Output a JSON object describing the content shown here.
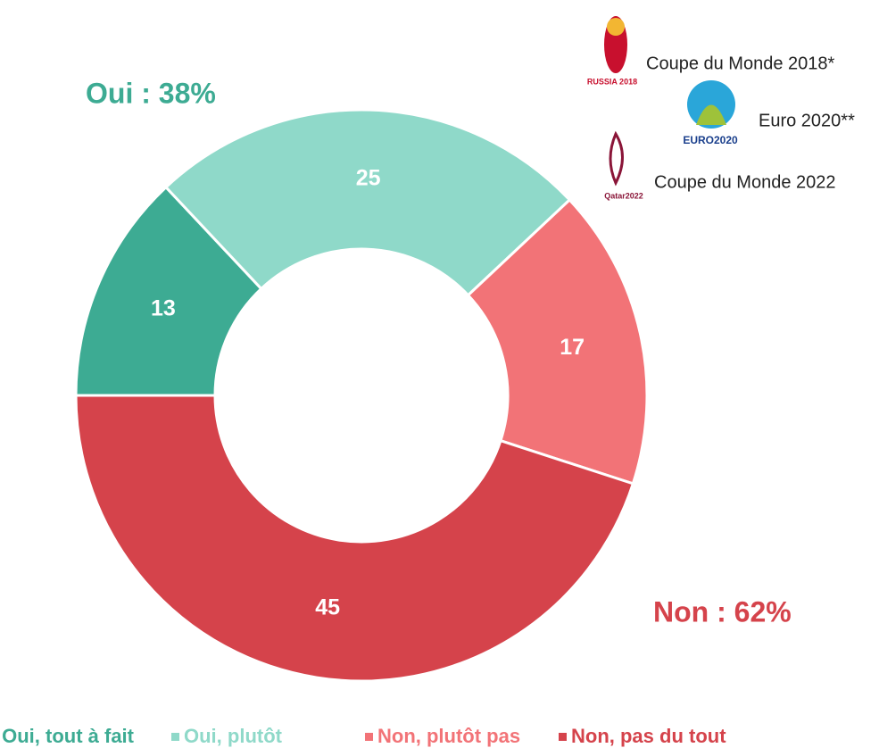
{
  "chart_data": {
    "type": "donut",
    "categories": [
      "Oui, tout à fait",
      "Oui, plutôt",
      "Non, plutôt pas",
      "Non, pas du tout"
    ],
    "values": [
      13,
      25,
      17,
      45
    ],
    "colors": [
      "#3dab93",
      "#8fd9c9",
      "#f27377",
      "#d5434b"
    ],
    "legend": "bottom",
    "annotations": [
      {
        "text": "Oui : 38%",
        "color": "#3dab93"
      },
      {
        "text": "Non : 62%",
        "color": "#d5434b"
      }
    ],
    "logos": [
      {
        "text": "Coupe du Monde 2018*",
        "badge": "RUSSIA 2018"
      },
      {
        "text": "Euro 2020**",
        "badge": "EURO2020"
      },
      {
        "text": "Coupe du Monde 2022",
        "badge": "Qatar2022"
      }
    ]
  }
}
